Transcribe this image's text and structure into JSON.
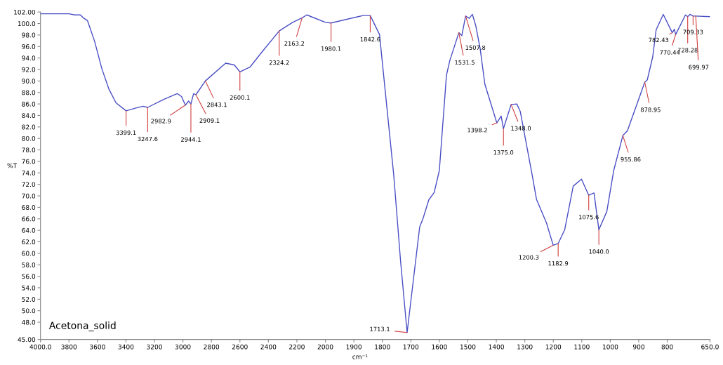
{
  "chart_data": [
    {
      "type": "line",
      "ylabel": "%T",
      "x": [
        4000,
        3900,
        3800,
        3760,
        3720,
        3700,
        3670,
        3620,
        3570,
        3520,
        3470,
        3399.1,
        3330,
        3280,
        3247.6,
        3135,
        3040,
        3010,
        2982.9,
        2960,
        2944.1,
        2925,
        2909.1,
        2843.1,
        2700,
        2640,
        2600.1,
        2530,
        2450,
        2324.2,
        2230,
        2163.2,
        2130,
        2000
      ],
      "series": [
        {
          "color": "#4a4fc4",
          "values": [
            101.7,
            101.7,
            101.7,
            101.5,
            101.5,
            101.0,
            100.5,
            96.9,
            92.2,
            88.6,
            86.2,
            84.8,
            85.3,
            85.6,
            85.4,
            86.8,
            87.8,
            87.3,
            85.8,
            86.5,
            86.0,
            87.8,
            87.6,
            90.0,
            93.1,
            92.8,
            91.6,
            92.4,
            94.9,
            98.7,
            100.2,
            101.0,
            101.5,
            100.2
          ]
        }
      ],
      "xlim": [
        4000,
        2000
      ],
      "ylim": [
        45,
        102
      ],
      "xticks": [
        {
          "value": 4000,
          "label": "4000.0"
        },
        3800,
        3600,
        3400,
        3200,
        3000,
        2800,
        2600,
        2400,
        2200,
        2000
      ],
      "yticks": [
        {
          "value": 45,
          "label": "45.00"
        },
        {
          "value": 48,
          "label": "48.0"
        },
        {
          "value": 50,
          "label": "50.0"
        },
        {
          "value": 52,
          "label": "52.0"
        },
        {
          "value": 54,
          "label": "54.0"
        },
        {
          "value": 56,
          "label": "56.0"
        },
        {
          "value": 58,
          "label": "58.0"
        },
        {
          "value": 60,
          "label": "60.0"
        },
        {
          "value": 62,
          "label": "62.0"
        },
        {
          "value": 64,
          "label": "64.0"
        },
        {
          "value": 66,
          "label": "66.0"
        },
        {
          "value": 68,
          "label": "68.0"
        },
        {
          "value": 70,
          "label": "70.0"
        },
        {
          "value": 72,
          "label": "72.0"
        },
        {
          "value": 74,
          "label": "74.0"
        },
        {
          "value": 76,
          "label": "76.0"
        },
        {
          "value": 78,
          "label": "78.0"
        },
        {
          "value": 80,
          "label": "80.0"
        },
        {
          "value": 82,
          "label": "82.0"
        },
        {
          "value": 84,
          "label": "84.0"
        },
        {
          "value": 86,
          "label": "86.0"
        },
        {
          "value": 88,
          "label": "88.0"
        },
        {
          "value": 90,
          "label": "90.0"
        },
        {
          "value": 92,
          "label": "92.0"
        },
        {
          "value": 94,
          "label": "94.0"
        },
        {
          "value": 96,
          "label": "96.0"
        },
        {
          "value": 98,
          "label": "98.0"
        },
        {
          "value": 100,
          "label": "100.0"
        },
        {
          "value": 102,
          "label": "102.00"
        }
      ],
      "grid": false,
      "legend": false,
      "marker": "none",
      "line_style": "solid",
      "annotations": [
        {
          "text": "3399.1",
          "x": 3399.1,
          "y": 84.8
        },
        {
          "text": "3247.6",
          "x": 3247.6,
          "y": 85.4
        },
        {
          "text": "2982.9",
          "x": 2982.9,
          "y": 85.8
        },
        {
          "text": "2944.1",
          "x": 2944.1,
          "y": 86.0
        },
        {
          "text": "2909.1",
          "x": 2909.1,
          "y": 87.6
        },
        {
          "text": "2843.1",
          "x": 2843.1,
          "y": 90.0
        },
        {
          "text": "2600.1",
          "x": 2600.1,
          "y": 91.6
        },
        {
          "text": "2324.2",
          "x": 2324.2,
          "y": 98.7
        },
        {
          "text": "2163.2",
          "x": 2163.2,
          "y": 101.0
        },
        "Acetona_solid"
      ]
    },
    {
      "type": "line",
      "xlabel": "cm⁻¹",
      "x": [
        2000,
        1980.1,
        1867,
        1842.6,
        1810,
        1760,
        1736,
        1713.1,
        1669,
        1657,
        1637,
        1618,
        1600,
        1575,
        1563,
        1531.5,
        1521,
        1507.8,
        1495,
        1484,
        1472,
        1457,
        1440,
        1415,
        1398.2,
        1383,
        1375,
        1348,
        1328,
        1316,
        1274,
        1259,
        1224,
        1200.3,
        1182.9,
        1160,
        1130,
        1101,
        1075.6,
        1057,
        1040,
        1012,
        988,
        955.86,
        940,
        878.95,
        870,
        851,
        839,
        814,
        782.43,
        775,
        770.44,
        736,
        728.28,
        720,
        709.33,
        699.97,
        650
      ],
      "series": [
        {
          "color": "#4a4fc4",
          "values": [
            100.2,
            100.1,
            101.4,
            101.4,
            98.1,
            73.6,
            58.6,
            46.2,
            64.6,
            66.1,
            69.3,
            70.6,
            74.4,
            91.0,
            93.6,
            98.4,
            97.9,
            101.3,
            100.9,
            101.6,
            99.6,
            95.7,
            89.4,
            85.4,
            82.7,
            83.9,
            81.7,
            85.9,
            86.0,
            84.7,
            73.6,
            69.4,
            65.3,
            61.4,
            61.7,
            64.1,
            71.7,
            72.9,
            70.1,
            70.5,
            64.1,
            67.3,
            74.4,
            80.5,
            81.3,
            89.8,
            90.2,
            94.2,
            98.9,
            101.6,
            98.4,
            99.0,
            98.1,
            101.5,
            101.2,
            101.6,
            101.3,
            101.3,
            101.2
          ]
        }
      ],
      "xlim": [
        2000,
        650
      ],
      "ylim": [
        45,
        102
      ],
      "xticks": [
        1900,
        1800,
        1700,
        1600,
        1500,
        1400,
        1300,
        1200,
        1100,
        1000,
        900,
        800,
        {
          "value": 650,
          "label": "650.0"
        }
      ],
      "tick_labels": "x",
      "grid": false,
      "legend": false,
      "marker": "none",
      "line_style": "solid",
      "annotations": [
        {
          "text": "1980.1",
          "x": 1980.1,
          "y": 100.1
        },
        {
          "text": "1842.6",
          "x": 1842.6,
          "y": 101.4
        },
        {
          "text": "1713.1",
          "x": 1713.1,
          "y": 46.2
        },
        {
          "text": "1531.5",
          "x": 1531.5,
          "y": 98.4
        },
        {
          "text": "1507.8",
          "x": 1507.8,
          "y": 101.3
        },
        {
          "text": "1398.2",
          "x": 1398.2,
          "y": 82.7
        },
        {
          "text": "1375.0",
          "x": 1375.0,
          "y": 81.7
        },
        {
          "text": "1348.0",
          "x": 1348.0,
          "y": 85.9
        },
        {
          "text": "1200.3",
          "x": 1200.3,
          "y": 61.4
        },
        {
          "text": "1182.9",
          "x": 1182.9,
          "y": 61.7
        },
        {
          "text": "1075.6",
          "x": 1075.6,
          "y": 70.1
        },
        {
          "text": "1040.0",
          "x": 1040.0,
          "y": 64.1
        },
        {
          "text": "955.86",
          "x": 955.86,
          "y": 80.5
        },
        {
          "text": "878.95",
          "x": 878.95,
          "y": 89.8
        },
        {
          "text": "782.43",
          "x": 782.43,
          "y": 98.4
        },
        {
          "text": "770.44",
          "x": 770.44,
          "y": 98.1
        },
        {
          "text": "728.28",
          "x": 728.28,
          "y": 101.2
        },
        {
          "text": "709.33",
          "x": 709.33,
          "y": 101.3
        },
        {
          "text": "699.97",
          "x": 699.97,
          "y": 101.3
        }
      ]
    }
  ]
}
